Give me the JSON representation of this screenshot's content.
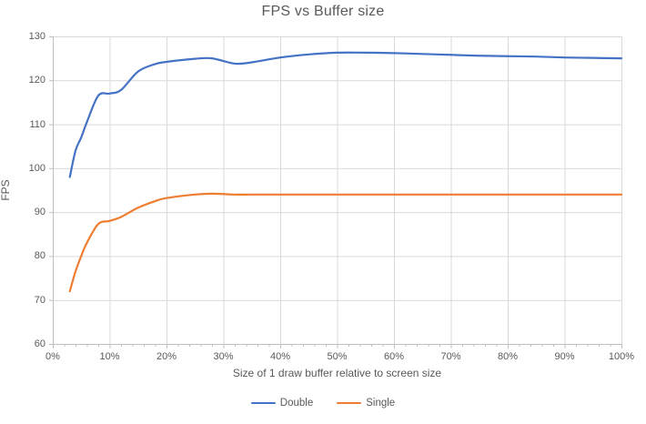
{
  "chart_data": {
    "type": "line",
    "title": "FPS vs Buffer size",
    "xlabel": "Size of 1 draw buffer relative to screen size",
    "ylabel": "FPS",
    "xlim": [
      0,
      100
    ],
    "ylim": [
      60,
      130
    ],
    "x_tick_step": 10,
    "x_minor_tick_step": 2,
    "y_tick_step": 10,
    "x_tick_suffix": "%",
    "grid": true,
    "legend_position": "bottom",
    "x": [
      3,
      4,
      5,
      6,
      8,
      10,
      12,
      15,
      18,
      20,
      25,
      28,
      32,
      35,
      40,
      45,
      50,
      55,
      60,
      65,
      70,
      75,
      80,
      85,
      90,
      95,
      100
    ],
    "series": [
      {
        "name": "Double",
        "color": "#4472C4",
        "values": [
          98,
          104,
          107,
          110.5,
          116.5,
          117,
          117.8,
          122,
          123.7,
          124.2,
          124.9,
          125,
          123.8,
          124.1,
          125.2,
          125.9,
          126.3,
          126.3,
          126.2,
          126,
          125.8,
          125.6,
          125.5,
          125.4,
          125.2,
          125.1,
          125
        ]
      },
      {
        "name": "Single",
        "color": "#ED7D31",
        "values": [
          72,
          76.5,
          80,
          83,
          87.3,
          88,
          88.9,
          91,
          92.5,
          93.2,
          94,
          94.2,
          94,
          94,
          94,
          94,
          94,
          94,
          94,
          94,
          94,
          94,
          94,
          94,
          94,
          94,
          94
        ]
      }
    ]
  },
  "colors": {
    "title_text": "#595959",
    "axis_text": "#595959",
    "gridline": "#D9D9D9",
    "axis_line": "#BFBFBF"
  }
}
